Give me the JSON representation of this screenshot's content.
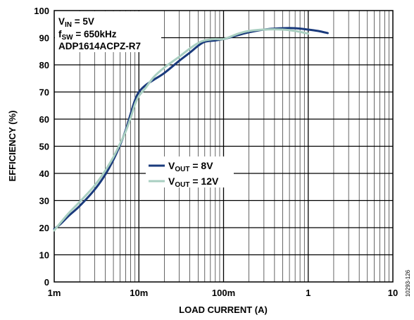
{
  "chart_data": {
    "type": "line",
    "xscale": "log",
    "xlim": [
      0.001,
      10
    ],
    "ylim": [
      0,
      100
    ],
    "xlabel": "LOAD CURRENT (A)",
    "ylabel": "EFFICIENCY (%)",
    "grid": true,
    "x_tick_labels": [
      "1m",
      "10m",
      "100m",
      "1",
      "10"
    ],
    "y_tick_labels": [
      "0",
      "10",
      "20",
      "30",
      "40",
      "50",
      "60",
      "70",
      "80",
      "90",
      "100"
    ],
    "annotations": {
      "vin": {
        "main": "V",
        "sub": "IN",
        "rest": " = 5V"
      },
      "fsw": {
        "main": "f",
        "sub": "SW",
        "rest": " = 650kHz"
      },
      "part": "ADP1614ACPZ-R7"
    },
    "legend_position": "center",
    "figure_id": "10293-126",
    "series": [
      {
        "legend": {
          "main": "V",
          "sub": "OUT",
          "rest": " = 8V"
        },
        "color": "#1a3a7c",
        "points": [
          [
            0.001,
            19.5
          ],
          [
            0.0012,
            21.5
          ],
          [
            0.0015,
            24.5
          ],
          [
            0.002,
            28
          ],
          [
            0.003,
            34
          ],
          [
            0.004,
            39.5
          ],
          [
            0.005,
            45
          ],
          [
            0.006,
            50.5
          ],
          [
            0.007,
            56
          ],
          [
            0.008,
            62
          ],
          [
            0.009,
            67
          ],
          [
            0.01,
            70
          ],
          [
            0.012,
            72.5
          ],
          [
            0.015,
            74.5
          ],
          [
            0.02,
            77
          ],
          [
            0.03,
            81.5
          ],
          [
            0.04,
            84.5
          ],
          [
            0.05,
            87
          ],
          [
            0.06,
            88.5
          ],
          [
            0.08,
            89
          ],
          [
            0.1,
            89.5
          ],
          [
            0.15,
            91
          ],
          [
            0.2,
            92
          ],
          [
            0.3,
            93
          ],
          [
            0.5,
            93.5
          ],
          [
            0.7,
            93.5
          ],
          [
            1.0,
            93
          ],
          [
            1.3,
            92.5
          ],
          [
            1.7,
            91.7
          ]
        ]
      },
      {
        "legend": {
          "main": "V",
          "sub": "OUT",
          "rest": " = 12V"
        },
        "color": "#a9cfc1",
        "points": [
          [
            0.001,
            19
          ],
          [
            0.0012,
            22
          ],
          [
            0.0015,
            25.5
          ],
          [
            0.002,
            29.5
          ],
          [
            0.003,
            35.5
          ],
          [
            0.004,
            41
          ],
          [
            0.005,
            46
          ],
          [
            0.006,
            51
          ],
          [
            0.007,
            55.5
          ],
          [
            0.008,
            60.5
          ],
          [
            0.009,
            65.5
          ],
          [
            0.01,
            68.5
          ],
          [
            0.012,
            71.5
          ],
          [
            0.015,
            75.5
          ],
          [
            0.02,
            79
          ],
          [
            0.03,
            83
          ],
          [
            0.04,
            86
          ],
          [
            0.05,
            88
          ],
          [
            0.06,
            89
          ],
          [
            0.08,
            89.5
          ],
          [
            0.1,
            89.5
          ],
          [
            0.15,
            91.5
          ],
          [
            0.2,
            92.5
          ],
          [
            0.3,
            93
          ],
          [
            0.5,
            93
          ],
          [
            0.7,
            92.5
          ],
          [
            1.0,
            91.5
          ]
        ]
      }
    ]
  }
}
